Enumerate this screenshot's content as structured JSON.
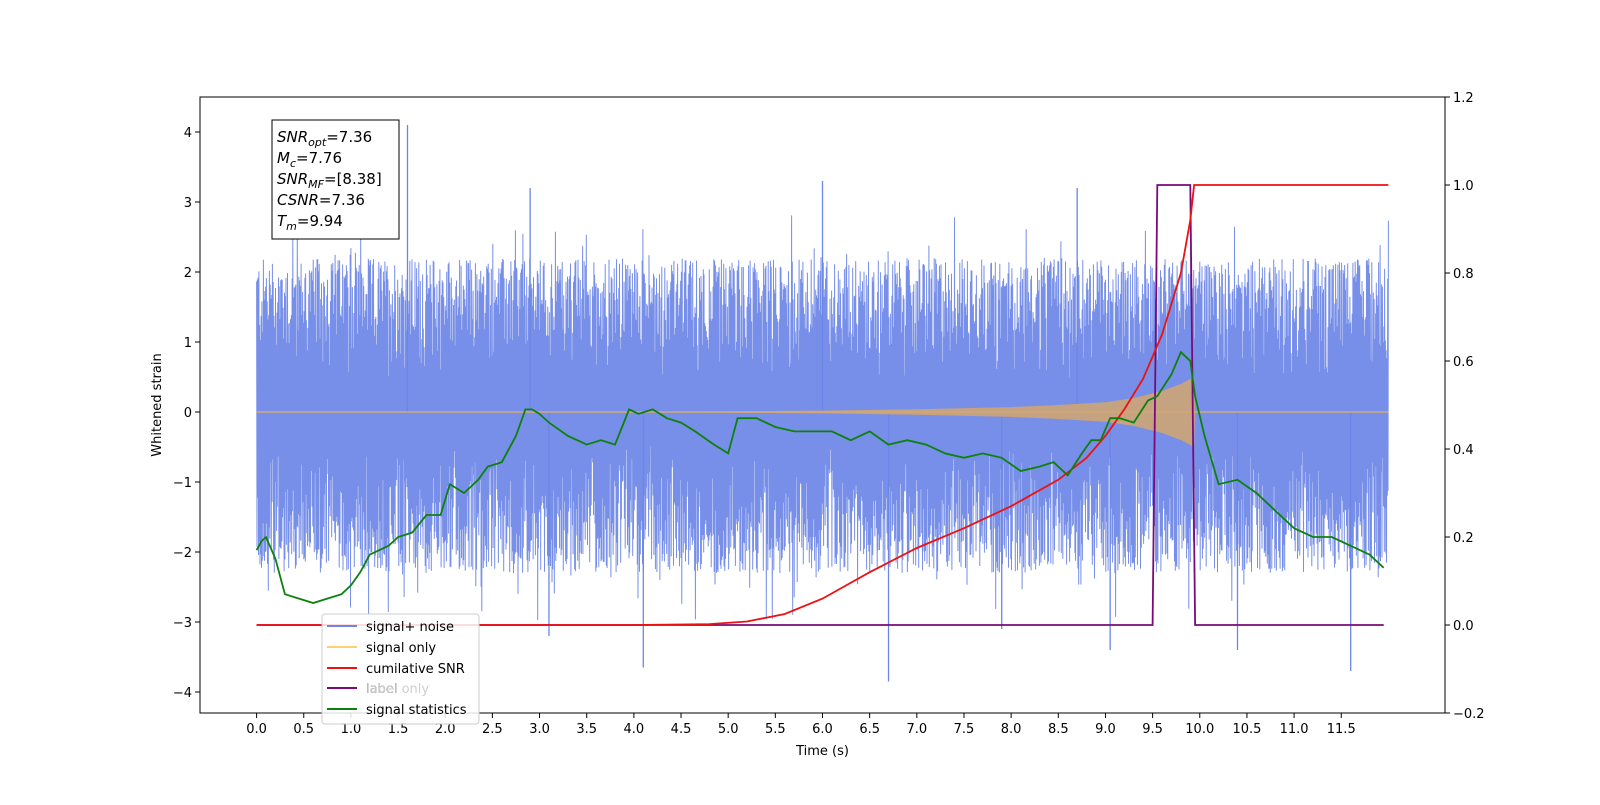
{
  "chart_data": {
    "type": "line",
    "xlabel": "Time (s)",
    "ylabel": "Whitened strain",
    "xlim": [
      -0.6,
      12.6
    ],
    "ylim": [
      -4.3,
      4.5
    ],
    "y2lim": [
      -0.2,
      1.2
    ],
    "x_ticks": [
      0.0,
      0.5,
      1.0,
      1.5,
      2.0,
      2.5,
      3.0,
      3.5,
      4.0,
      4.5,
      5.0,
      5.5,
      6.0,
      6.5,
      7.0,
      7.5,
      8.0,
      8.5,
      9.0,
      9.5,
      10.0,
      10.5,
      11.0,
      11.5
    ],
    "x_tick_labels": [
      "0.0",
      "0.5",
      "1.0",
      "1.5",
      "2.0",
      "2.5",
      "3.0",
      "3.5",
      "4.0",
      "4.5",
      "5.0",
      "5.5",
      "6.0",
      "6.5",
      "7.0",
      "7.5",
      "8.0",
      "8.5",
      "9.0",
      "9.5",
      "10.0",
      "10.5",
      "11.0",
      "11.5"
    ],
    "y_ticks": [
      -4,
      -3,
      -2,
      -1,
      0,
      1,
      2,
      3,
      4
    ],
    "y_tick_labels": [
      "−4",
      "−3",
      "−2",
      "−1",
      "0",
      "1",
      "2",
      "3",
      "4"
    ],
    "y2_ticks": [
      -0.2,
      0.0,
      0.2,
      0.4,
      0.6,
      0.8,
      1.0,
      1.2
    ],
    "y2_tick_labels": [
      "−0.2",
      "0.0",
      "0.2",
      "0.4",
      "0.6",
      "0.8",
      "1.0",
      "1.2"
    ],
    "grid": false,
    "legend_position": "lower-left",
    "legend": [
      {
        "label": "signal+ noise",
        "color": "#6b86e6"
      },
      {
        "label": "signal only",
        "color": "#ffcf70"
      },
      {
        "label": "cumilative SNR",
        "color": "#ee1111"
      },
      {
        "label": "label",
        "color": "#7a0a7a"
      },
      {
        "label": "label only",
        "color": "#7a0a7a"
      },
      {
        "label": "signal statistics",
        "color": "#0e800e"
      }
    ],
    "annotation": {
      "lines": [
        {
          "base": "SNR",
          "sub": "opt",
          "rest": "=7.36"
        },
        {
          "base": "M",
          "sub": "c",
          "rest": "=7.76"
        },
        {
          "base": "SNR",
          "sub": "MF",
          "rest": "=[8.38]"
        },
        {
          "base": "CSNR",
          "sub": "",
          "rest": "=7.36"
        },
        {
          "base": "T",
          "sub": "m",
          "rest": "=9.94"
        }
      ]
    },
    "series": [
      {
        "name": "signal+ noise",
        "axis": "left",
        "color": "#6b86e6",
        "x_range": [
          0.0,
          12.0
        ],
        "envelope_upper": 2.2,
        "envelope_lower": -2.3,
        "peaks": [
          {
            "x": 1.6,
            "y": 4.1
          },
          {
            "x": 2.9,
            "y": 3.2
          },
          {
            "x": 6.0,
            "y": 3.3
          },
          {
            "x": 8.7,
            "y": 3.2
          },
          {
            "x": 4.1,
            "y": -3.65
          },
          {
            "x": 6.7,
            "y": -3.85
          },
          {
            "x": 11.6,
            "y": -3.7
          },
          {
            "x": 9.05,
            "y": -3.4
          },
          {
            "x": 3.1,
            "y": -3.2
          },
          {
            "x": 10.4,
            "y": -3.4
          },
          {
            "x": 7.9,
            "y": -3.1
          }
        ]
      },
      {
        "name": "signal only",
        "axis": "left",
        "color": "#ffcf70",
        "x": [
          0.0,
          5.0,
          6.0,
          7.0,
          8.0,
          8.5,
          9.0,
          9.3,
          9.6,
          9.8,
          9.94,
          9.95,
          12.0
        ],
        "amplitude": [
          0.0,
          0.01,
          0.02,
          0.04,
          0.07,
          0.1,
          0.14,
          0.2,
          0.3,
          0.4,
          0.5,
          0.0,
          0.0
        ]
      },
      {
        "name": "cumilative SNR",
        "axis": "right",
        "color": "#ee1111",
        "x": [
          0.0,
          4.0,
          4.8,
          5.2,
          5.6,
          6.0,
          6.5,
          7.0,
          7.5,
          8.0,
          8.5,
          8.8,
          9.0,
          9.2,
          9.4,
          9.6,
          9.8,
          9.9,
          9.94,
          12.0
        ],
        "y": [
          0.0,
          0.0,
          0.002,
          0.008,
          0.025,
          0.06,
          0.12,
          0.175,
          0.22,
          0.27,
          0.33,
          0.38,
          0.43,
          0.49,
          0.56,
          0.66,
          0.8,
          0.92,
          1.0,
          1.0
        ]
      },
      {
        "name": "label",
        "axis": "right",
        "color": "#7a0a7a",
        "x": [
          0.0,
          9.5,
          9.55,
          9.9,
          9.95,
          11.95
        ],
        "y": [
          0.0,
          0.0,
          1.0,
          1.0,
          0.0,
          0.0
        ]
      },
      {
        "name": "signal statistics",
        "axis": "right",
        "color": "#0e800e",
        "x": [
          0.0,
          0.05,
          0.1,
          0.2,
          0.3,
          0.45,
          0.6,
          0.75,
          0.9,
          1.0,
          1.1,
          1.2,
          1.4,
          1.5,
          1.65,
          1.8,
          1.95,
          2.05,
          2.2,
          2.35,
          2.45,
          2.6,
          2.75,
          2.85,
          2.92,
          3.0,
          3.1,
          3.3,
          3.5,
          3.65,
          3.8,
          3.95,
          4.05,
          4.2,
          4.35,
          4.5,
          4.65,
          4.85,
          5.0,
          5.1,
          5.3,
          5.5,
          5.7,
          5.9,
          6.1,
          6.3,
          6.5,
          6.7,
          6.9,
          7.1,
          7.3,
          7.5,
          7.7,
          7.9,
          8.1,
          8.3,
          8.45,
          8.6,
          8.75,
          8.85,
          8.95,
          9.05,
          9.15,
          9.3,
          9.45,
          9.55,
          9.7,
          9.8,
          9.9,
          9.95,
          10.05,
          10.2,
          10.4,
          10.6,
          10.8,
          11.0,
          11.2,
          11.4,
          11.6,
          11.8,
          11.95
        ],
        "y": [
          0.17,
          0.19,
          0.2,
          0.15,
          0.07,
          0.06,
          0.05,
          0.06,
          0.07,
          0.09,
          0.12,
          0.16,
          0.18,
          0.2,
          0.21,
          0.25,
          0.25,
          0.32,
          0.3,
          0.33,
          0.36,
          0.37,
          0.43,
          0.49,
          0.49,
          0.48,
          0.46,
          0.43,
          0.41,
          0.42,
          0.41,
          0.49,
          0.48,
          0.49,
          0.47,
          0.46,
          0.44,
          0.41,
          0.39,
          0.47,
          0.47,
          0.45,
          0.44,
          0.44,
          0.44,
          0.42,
          0.44,
          0.41,
          0.42,
          0.41,
          0.39,
          0.38,
          0.39,
          0.38,
          0.35,
          0.36,
          0.37,
          0.34,
          0.39,
          0.42,
          0.42,
          0.47,
          0.47,
          0.46,
          0.51,
          0.52,
          0.57,
          0.62,
          0.6,
          0.52,
          0.43,
          0.32,
          0.33,
          0.3,
          0.26,
          0.22,
          0.2,
          0.2,
          0.18,
          0.16,
          0.13
        ]
      }
    ]
  }
}
